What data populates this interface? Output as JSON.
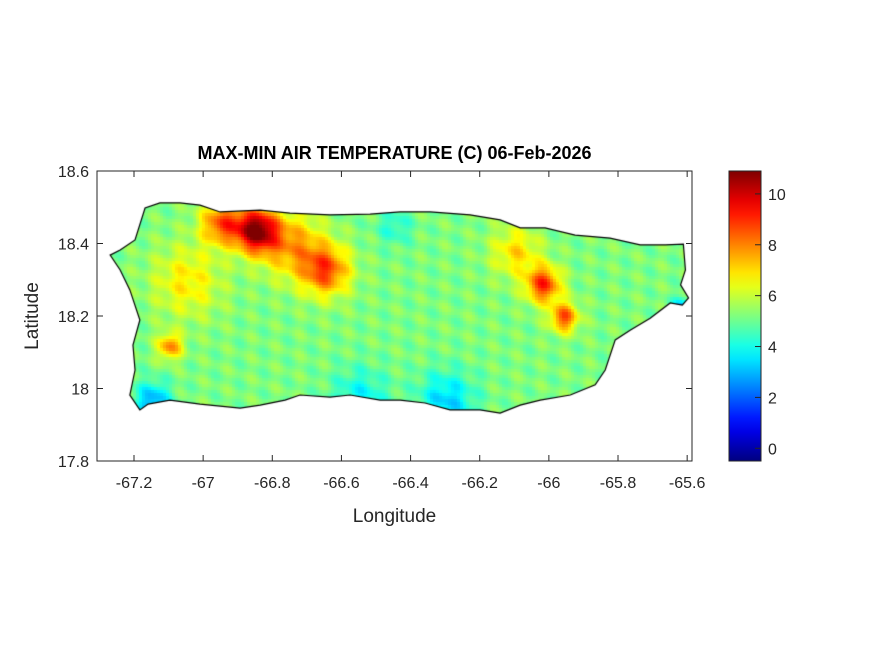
{
  "chart_data": {
    "type": "heatmap",
    "title": "MAX-MIN AIR TEMPERATURE (C) 06-Feb-2026",
    "xlabel": "Longitude",
    "ylabel": "Latitude",
    "xlim": [
      -67.307,
      -65.586
    ],
    "ylim": [
      17.8,
      18.6
    ],
    "xticks": [
      -67.2,
      -67,
      -66.8,
      -66.6,
      -66.4,
      -66.2,
      -66,
      -65.8,
      -65.6
    ],
    "xtick_labels": [
      "-67.2",
      "-67",
      "-66.8",
      "-66.6",
      "-66.4",
      "-66.2",
      "-66",
      "-65.8",
      "-65.6"
    ],
    "yticks": [
      17.8,
      18,
      18.2,
      18.4,
      18.6
    ],
    "ytick_labels": [
      "17.8",
      "18",
      "18.2",
      "18.4",
      "18.6"
    ],
    "colormap": "jet",
    "clim": [
      -0.5,
      10.9
    ],
    "colorbar_ticks": [
      0,
      2,
      4,
      6,
      8,
      10
    ],
    "colorbar_tick_labels": [
      "0",
      "2",
      "4",
      "6",
      "8",
      "10"
    ],
    "grid": false,
    "base_value": 5.2,
    "field_anchors": [
      {
        "lon": -66.85,
        "lat": 18.44,
        "value": 10.7,
        "spread": 0.06
      },
      {
        "lon": -66.95,
        "lat": 18.46,
        "value": 8.5,
        "spread": 0.06
      },
      {
        "lon": -66.65,
        "lat": 18.33,
        "value": 8.6,
        "spread": 0.07
      },
      {
        "lon": -66.75,
        "lat": 18.4,
        "value": 7.6,
        "spread": 0.09
      },
      {
        "lon": -66.02,
        "lat": 18.29,
        "value": 9.0,
        "spread": 0.05
      },
      {
        "lon": -65.96,
        "lat": 18.2,
        "value": 8.6,
        "spread": 0.04
      },
      {
        "lon": -66.1,
        "lat": 18.38,
        "value": 7.0,
        "spread": 0.07
      },
      {
        "lon": -67.1,
        "lat": 18.12,
        "value": 8.0,
        "spread": 0.035
      },
      {
        "lon": -67.05,
        "lat": 18.3,
        "value": 6.8,
        "spread": 0.1
      },
      {
        "lon": -66.3,
        "lat": 17.97,
        "value": 3.3,
        "spread": 0.08
      },
      {
        "lon": -66.55,
        "lat": 17.98,
        "value": 3.8,
        "spread": 0.08
      },
      {
        "lon": -67.15,
        "lat": 17.97,
        "value": 2.8,
        "spread": 0.05
      },
      {
        "lon": -65.7,
        "lat": 18.05,
        "value": 3.6,
        "spread": 0.07
      },
      {
        "lon": -66.45,
        "lat": 18.45,
        "value": 4.2,
        "spread": 0.05
      },
      {
        "lon": -65.62,
        "lat": 18.22,
        "value": 2.5,
        "spread": 0.03
      }
    ],
    "coastline": [
      [
        -67.269,
        18.368
      ],
      [
        -67.24,
        18.382
      ],
      [
        -67.197,
        18.41
      ],
      [
        -67.168,
        18.498
      ],
      [
        -67.125,
        18.512
      ],
      [
        -67.067,
        18.512
      ],
      [
        -67.009,
        18.506
      ],
      [
        -66.951,
        18.487
      ],
      [
        -66.835,
        18.492
      ],
      [
        -66.749,
        18.484
      ],
      [
        -66.633,
        18.479
      ],
      [
        -66.517,
        18.481
      ],
      [
        -66.43,
        18.487
      ],
      [
        -66.343,
        18.487
      ],
      [
        -66.228,
        18.479
      ],
      [
        -66.141,
        18.465
      ],
      [
        -66.083,
        18.443
      ],
      [
        -66.011,
        18.443
      ],
      [
        -65.924,
        18.423
      ],
      [
        -65.823,
        18.415
      ],
      [
        -65.736,
        18.396
      ],
      [
        -65.663,
        18.396
      ],
      [
        -65.611,
        18.398
      ],
      [
        -65.605,
        18.327
      ],
      [
        -65.619,
        18.286
      ],
      [
        -65.596,
        18.25
      ],
      [
        -65.614,
        18.23
      ],
      [
        -65.649,
        18.236
      ],
      [
        -65.707,
        18.194
      ],
      [
        -65.765,
        18.161
      ],
      [
        -65.808,
        18.134
      ],
      [
        -65.837,
        18.051
      ],
      [
        -65.866,
        18.01
      ],
      [
        -65.938,
        17.982
      ],
      [
        -66.025,
        17.968
      ],
      [
        -66.083,
        17.954
      ],
      [
        -66.141,
        17.932
      ],
      [
        -66.199,
        17.941
      ],
      [
        -66.286,
        17.941
      ],
      [
        -66.358,
        17.96
      ],
      [
        -66.43,
        17.968
      ],
      [
        -66.488,
        17.968
      ],
      [
        -66.575,
        17.982
      ],
      [
        -66.633,
        17.976
      ],
      [
        -66.72,
        17.982
      ],
      [
        -66.763,
        17.968
      ],
      [
        -66.835,
        17.954
      ],
      [
        -66.893,
        17.946
      ],
      [
        -67.009,
        17.957
      ],
      [
        -67.096,
        17.968
      ],
      [
        -67.159,
        17.957
      ],
      [
        -67.183,
        17.941
      ],
      [
        -67.212,
        17.982
      ],
      [
        -67.197,
        18.051
      ],
      [
        -67.203,
        18.12
      ],
      [
        -67.183,
        18.189
      ],
      [
        -67.212,
        18.272
      ],
      [
        -67.24,
        18.327
      ]
    ]
  }
}
